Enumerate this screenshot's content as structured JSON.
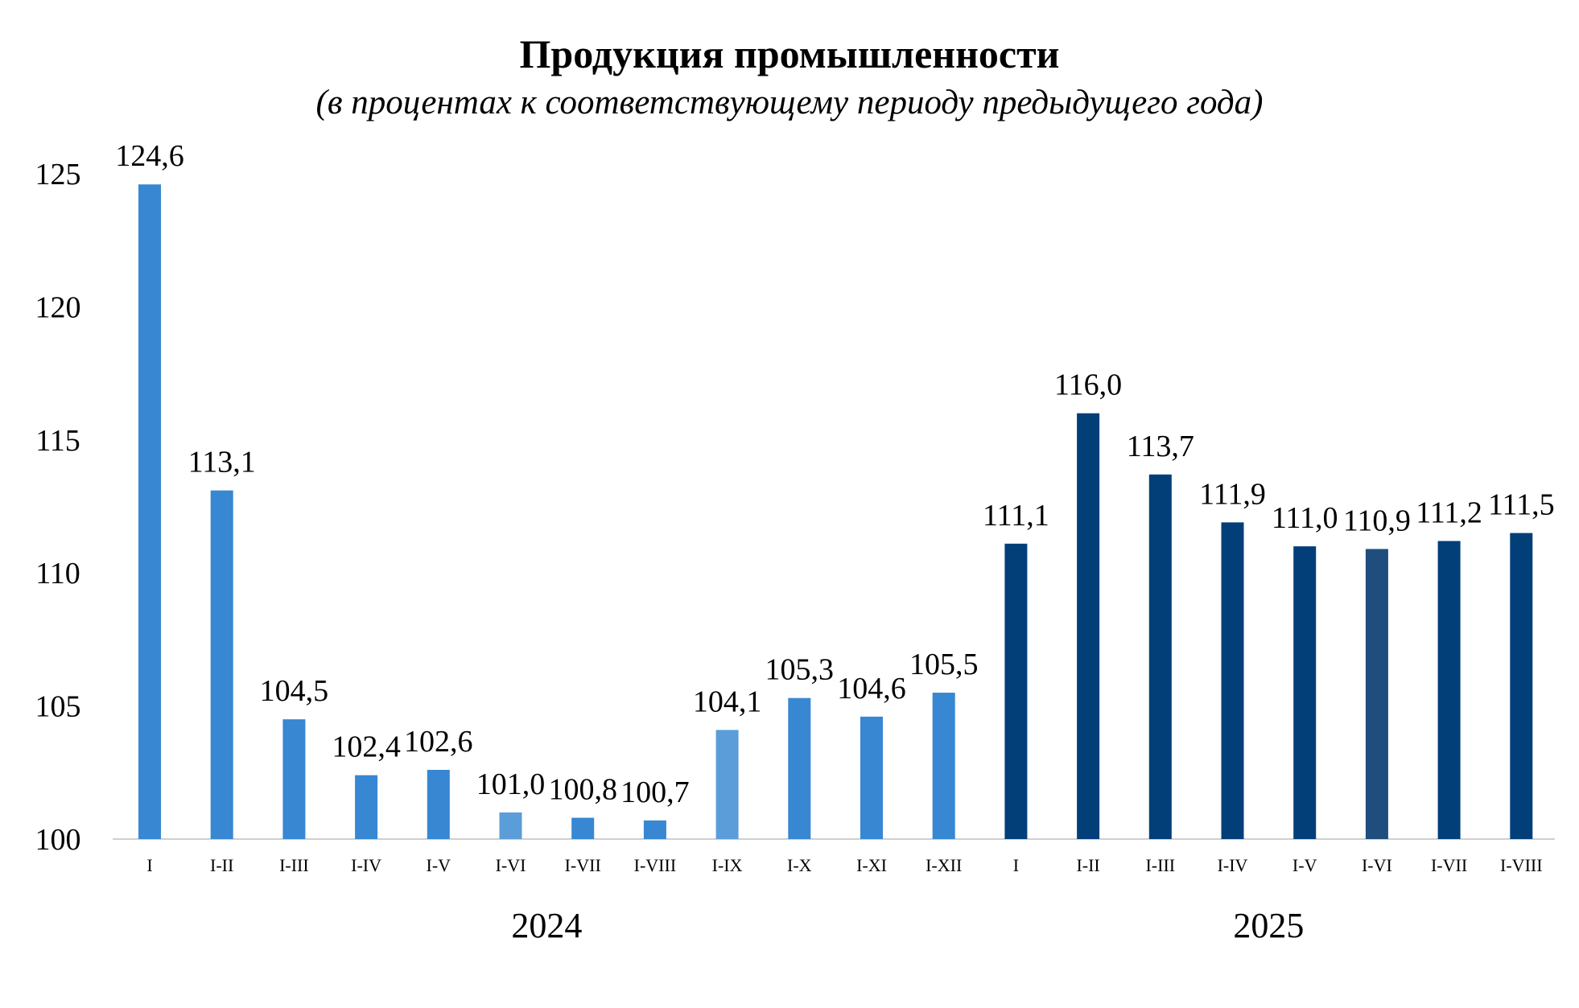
{
  "chart_data": {
    "type": "bar",
    "title": "Продукция промышленности",
    "subtitle": "(в процентах к соответствующему периоду предыдущего года)",
    "xlabel": "",
    "ylabel": "",
    "ylim": [
      100,
      125
    ],
    "yticks": [
      "100",
      "105",
      "110",
      "115",
      "120",
      "125"
    ],
    "grid": false,
    "categories": [
      "I",
      "I-II",
      "I-III",
      "I-IV",
      "I-V",
      "I-VI",
      "I-VII",
      "I-VIII",
      "I-IX",
      "I-X",
      "I-XI",
      "I-XII",
      "I",
      "I-II",
      "I-III",
      "I-IV",
      "I-V",
      "I-VI",
      "I-VII",
      "I-VIII"
    ],
    "values": [
      124.6,
      113.1,
      104.5,
      102.4,
      102.6,
      101.0,
      100.8,
      100.7,
      104.1,
      105.3,
      104.6,
      105.5,
      111.1,
      116.0,
      113.7,
      111.9,
      111.0,
      110.9,
      111.2,
      111.5
    ],
    "value_labels": [
      "124,6",
      "113,1",
      "104,5",
      "102,4",
      "102,6",
      "101,0",
      "100,8",
      "100,7",
      "104,1",
      "105,3",
      "104,6",
      "105,5",
      "111,1",
      "116,0",
      "113,7",
      "111,9",
      "111,0",
      "110,9",
      "111,2",
      "111,5"
    ],
    "colors": [
      "#3787D2",
      "#3787D2",
      "#3787D2",
      "#3787D2",
      "#3787D2",
      "#5B9DD9",
      "#3787D2",
      "#3787D2",
      "#5B9DD9",
      "#3787D2",
      "#3787D2",
      "#3787D2",
      "#023F78",
      "#023F78",
      "#023F78",
      "#023F78",
      "#023F78",
      "#1F4E7E",
      "#023F78",
      "#023F78"
    ],
    "groups": [
      {
        "label": "2024",
        "start": 0,
        "end": 11
      },
      {
        "label": "2025",
        "start": 12,
        "end": 19
      }
    ]
  }
}
